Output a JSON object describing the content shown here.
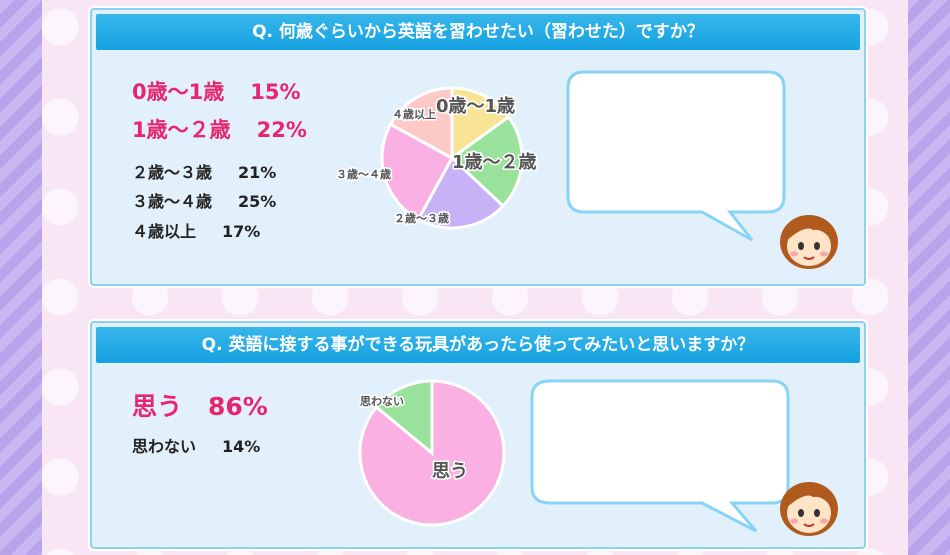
{
  "q1": {
    "title": "Q. 何歳ぐらいから英語を習わせたい（習わせた）ですか？",
    "stats": [
      {
        "label": "0歳〜1歳",
        "pct": "15%"
      },
      {
        "label": "1歳〜２歳",
        "pct": "22%"
      },
      {
        "label": "２歳〜３歳",
        "pct": "21%"
      },
      {
        "label": "３歳〜４歳",
        "pct": "25%"
      },
      {
        "label": "４歳以上",
        "pct": "17%"
      }
    ],
    "pie_labels": [
      "0歳〜1歳",
      "1歳〜２歳",
      "２歳〜３歳",
      "３歳〜４歳",
      "４歳以上"
    ]
  },
  "q2": {
    "title": "Q. 英語に接する事ができる玩具があったら使ってみたいと思いますか？",
    "stats": [
      {
        "label": "思う",
        "pct": "86%"
      },
      {
        "label": "思わない",
        "pct": "14%"
      }
    ],
    "pie_labels": [
      "思う",
      "思わない"
    ]
  },
  "chart_data": [
    {
      "type": "pie",
      "title": "Q. 何歳ぐらいから英語を習わせたい（習わせた）ですか？",
      "categories": [
        "0歳〜1歳",
        "1歳〜２歳",
        "２歳〜３歳",
        "３歳〜４歳",
        "４歳以上"
      ],
      "values": [
        15,
        22,
        21,
        25,
        17
      ],
      "colors": [
        "#f7e494",
        "#98e29b",
        "#c8b2f7",
        "#fbb0e3",
        "#fcc9c7"
      ]
    },
    {
      "type": "pie",
      "title": "Q. 英語に接する事ができる玩具があったら使ってみたいと思いますか？",
      "categories": [
        "思う",
        "思わない"
      ],
      "values": [
        86,
        14
      ],
      "colors": [
        "#fbb0e3",
        "#98e29b"
      ]
    }
  ]
}
